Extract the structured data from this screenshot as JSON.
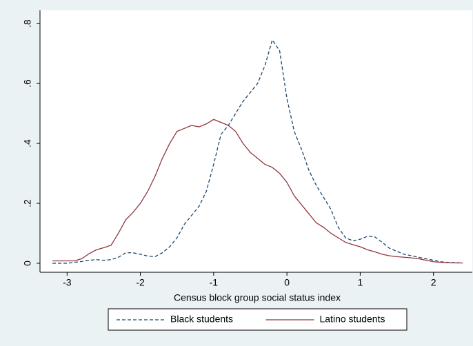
{
  "chart_data": {
    "type": "line",
    "x_label": "Census block group social status index",
    "x": [
      -3.2,
      -3.1,
      -3.0,
      -2.9,
      -2.8,
      -2.7,
      -2.6,
      -2.5,
      -2.4,
      -2.3,
      -2.2,
      -2.1,
      -2.0,
      -1.9,
      -1.8,
      -1.7,
      -1.6,
      -1.5,
      -1.4,
      -1.3,
      -1.2,
      -1.1,
      -1.0,
      -0.9,
      -0.8,
      -0.7,
      -0.6,
      -0.5,
      -0.4,
      -0.3,
      -0.2,
      -0.1,
      0.0,
      0.1,
      0.2,
      0.3,
      0.4,
      0.5,
      0.6,
      0.7,
      0.8,
      0.9,
      1.0,
      1.1,
      1.2,
      1.3,
      1.4,
      1.5,
      1.6,
      1.7,
      1.8,
      1.9,
      2.0,
      2.1,
      2.2,
      2.3,
      2.4
    ],
    "series": [
      {
        "name": "Black students",
        "color": "#1a476f",
        "dash": true,
        "values": [
          0,
          0,
          0,
          0.003,
          0.006,
          0.01,
          0.012,
          0.01,
          0.012,
          0.02,
          0.035,
          0.035,
          0.03,
          0.024,
          0.022,
          0.035,
          0.055,
          0.085,
          0.13,
          0.16,
          0.19,
          0.24,
          0.33,
          0.43,
          0.46,
          0.5,
          0.54,
          0.57,
          0.6,
          0.66,
          0.745,
          0.71,
          0.55,
          0.44,
          0.38,
          0.31,
          0.26,
          0.22,
          0.18,
          0.12,
          0.085,
          0.075,
          0.08,
          0.09,
          0.088,
          0.07,
          0.05,
          0.04,
          0.03,
          0.025,
          0.02,
          0.015,
          0.01,
          0.005,
          0.003,
          0.002,
          0.001
        ]
      },
      {
        "name": "Latino students",
        "color": "#90353b",
        "dash": false,
        "values": [
          0.008,
          0.008,
          0.008,
          0.008,
          0.015,
          0.032,
          0.045,
          0.052,
          0.06,
          0.1,
          0.145,
          0.17,
          0.2,
          0.24,
          0.29,
          0.35,
          0.4,
          0.44,
          0.45,
          0.46,
          0.455,
          0.465,
          0.48,
          0.47,
          0.46,
          0.44,
          0.4,
          0.37,
          0.35,
          0.33,
          0.32,
          0.3,
          0.27,
          0.225,
          0.195,
          0.165,
          0.135,
          0.12,
          0.1,
          0.085,
          0.07,
          0.062,
          0.055,
          0.045,
          0.038,
          0.03,
          0.025,
          0.022,
          0.02,
          0.018,
          0.015,
          0.01,
          0.005,
          0.003,
          0.002,
          0.001,
          0.001
        ]
      }
    ],
    "xlim": [
      -3.37,
      2.53
    ],
    "xticks": [
      -3,
      -2,
      -1,
      0,
      1,
      2
    ],
    "ylim": [
      -0.03,
      0.844
    ],
    "yticks": [
      0,
      {
        "value": 0.2,
        "label": ".2"
      },
      {
        "value": 0.4,
        "label": ".4"
      },
      {
        "value": 0.6,
        "label": ".6"
      },
      {
        "value": 0.8,
        "label": ".8"
      }
    ],
    "grid": false,
    "legend": "bottom"
  }
}
